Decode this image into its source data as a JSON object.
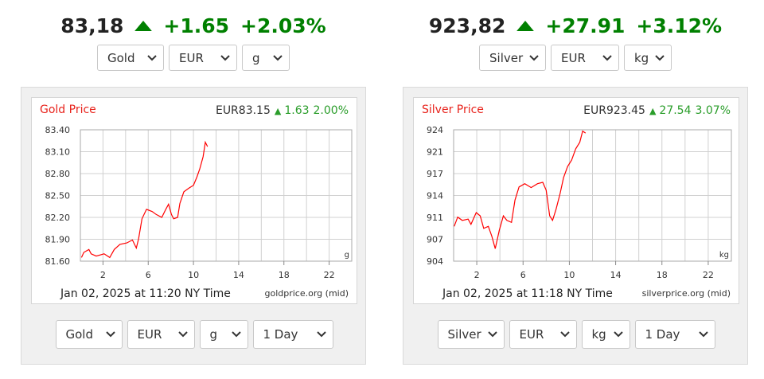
{
  "widgets": [
    {
      "price": "83,18",
      "change": "+1.65",
      "change_pct": "+2.03%",
      "top_selects": [
        "Gold",
        "EUR",
        "g"
      ],
      "bottom_selects": [
        "Gold",
        "EUR",
        "g",
        "1 Day"
      ]
    },
    {
      "price": "923,82",
      "change": "+27.91",
      "change_pct": "+3.12%",
      "top_selects": [
        "Silver",
        "EUR",
        "kg"
      ],
      "bottom_selects": [
        "Silver",
        "EUR",
        "kg",
        "1 Day"
      ]
    }
  ],
  "chart_data": [
    {
      "type": "line",
      "title": "Gold Price",
      "quote": "EUR83.15",
      "quote_change": "1.63",
      "quote_change_pct": "2.00%",
      "timestamp": "Jan 02, 2025 at 11:20 NY Time",
      "source": "goldprice.org (mid)",
      "unit": "g",
      "color": "#ff0000",
      "x": [
        0.1,
        0.3,
        0.75,
        0.95,
        1.4,
        2.1,
        2.6,
        3,
        3.5,
        4.1,
        4.6,
        4.95,
        5.15,
        5.45,
        5.85,
        6.35,
        6.7,
        7.2,
        7.55,
        7.8,
        8.05,
        8.25,
        8.6,
        8.8,
        9.15,
        9.6,
        10,
        10.3,
        10.55,
        10.85,
        11.05,
        11.25
      ],
      "values": [
        81.65,
        81.72,
        81.76,
        81.7,
        81.67,
        81.7,
        81.65,
        81.76,
        81.83,
        81.85,
        81.89,
        81.78,
        81.91,
        82.18,
        82.31,
        82.28,
        82.24,
        82.2,
        82.31,
        82.38,
        82.24,
        82.18,
        82.2,
        82.39,
        82.55,
        82.6,
        82.64,
        82.75,
        82.86,
        83.03,
        83.23,
        83.17
      ],
      "xlim": [
        0,
        24
      ],
      "xticks": [
        2,
        6,
        10,
        14,
        18,
        22
      ],
      "xgrid": [
        0,
        2,
        4,
        6,
        8,
        10,
        12,
        14,
        16,
        18,
        20,
        22,
        24
      ],
      "ylim": [
        81.6,
        83.4
      ],
      "yticks": [
        {
          "value": 81.6,
          "label": "81.60"
        },
        {
          "value": 81.9,
          "label": "81.90"
        },
        {
          "value": 82.2,
          "label": "82.20"
        },
        {
          "value": 82.5,
          "label": "82.50"
        },
        {
          "value": 82.8,
          "label": "82.80"
        },
        {
          "value": 83.1,
          "label": "83.10"
        },
        {
          "value": 83.4,
          "label": "83.40"
        }
      ],
      "grid": true
    },
    {
      "type": "line",
      "title": "Silver Price",
      "quote": "EUR923.45",
      "quote_change": "27.54",
      "quote_change_pct": "3.07%",
      "timestamp": "Jan 02, 2025 at 11:18 NY Time",
      "source": "silverprice.org (mid)",
      "unit": "kg",
      "color": "#ff0000",
      "x": [
        0.05,
        0.35,
        0.75,
        1.25,
        1.5,
        1.95,
        2.3,
        2.6,
        3,
        3.3,
        3.6,
        3.95,
        4.3,
        4.6,
        5,
        5.3,
        5.65,
        6.15,
        6.7,
        7.25,
        7.7,
        8,
        8.3,
        8.55,
        8.85,
        9.2,
        9.5,
        9.85,
        10.2,
        10.55,
        10.9,
        11.15,
        11.4
      ],
      "values": [
        909.3,
        910.7,
        910.2,
        910.4,
        909.6,
        911.4,
        910.9,
        909.0,
        909.3,
        907.8,
        905.9,
        908.7,
        910.9,
        910.2,
        909.9,
        913.3,
        915.3,
        915.8,
        915.2,
        915.8,
        916.0,
        914.8,
        910.9,
        910.2,
        911.9,
        914.3,
        916.7,
        918.4,
        919.4,
        921.1,
        922.1,
        923.8,
        923.5
      ],
      "xlim": [
        0,
        24
      ],
      "xticks": [
        2,
        6,
        10,
        14,
        18,
        22
      ],
      "xgrid": [
        0,
        2,
        4,
        6,
        8,
        10,
        12,
        14,
        16,
        18,
        20,
        22,
        24
      ],
      "ylim": [
        904,
        924
      ],
      "yticks": [
        904,
        {
          "value": 907.33,
          "label": "907"
        },
        {
          "value": 910.67,
          "label": "911"
        },
        914,
        {
          "value": 917.33,
          "label": "917"
        },
        {
          "value": 920.67,
          "label": "921"
        },
        924
      ],
      "grid": true
    }
  ]
}
